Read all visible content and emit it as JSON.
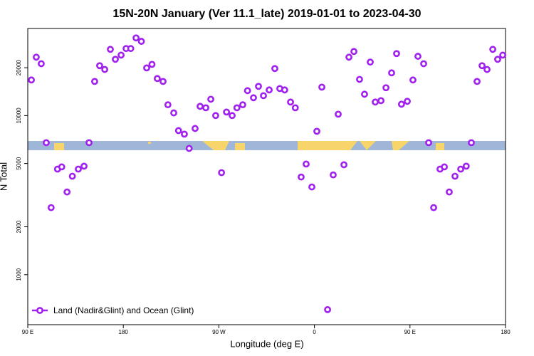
{
  "chart_data": {
    "type": "scatter",
    "title": "15N-20N January (Ver 11.1_late)   2019-01-01 to 2023-04-30",
    "x_label": "Longitude (deg E)",
    "y_label": "N Total",
    "xlim": [
      90,
      540
    ],
    "ylim": [
      485,
      35300
    ],
    "log_y": true,
    "xticks": [
      {
        "value": 90,
        "label": "90 E"
      },
      180,
      {
        "value": 270,
        "label": "90 W"
      },
      {
        "value": 360,
        "label": "0"
      },
      {
        "value": 450,
        "label": "90 E"
      },
      {
        "value": 540,
        "label": "180"
      }
    ],
    "yticks": [
      1000,
      2000,
      5000,
      10000,
      20000
    ],
    "legend": "lower left",
    "series": [
      {
        "name": "Land (Nadir&Glint) and Ocean (Glint)",
        "color": "#a020f0",
        "x": [
          93.4,
          98,
          102.7,
          107.4,
          112,
          118,
          122,
          127,
          132,
          137.6,
          143,
          147.7,
          153,
          157.7,
          162.5,
          167.8,
          172.5,
          177.9,
          182.6,
          187,
          192,
          197,
          202,
          207,
          212,
          217.4,
          222,
          227.5,
          232,
          237.5,
          242,
          247.6,
          252.3,
          257.7,
          262.4,
          267,
          272.5,
          277.2,
          282.5,
          287,
          292.5,
          297,
          302.6,
          307.3,
          312,
          317.4,
          322.7,
          327.4,
          332,
          337.5,
          342,
          347.5,
          352.2,
          357.6,
          362.3,
          367,
          372.4,
          377.7,
          382.4,
          387.8,
          392.5,
          397.2,
          402.5,
          407.2,
          412.6,
          417.3,
          422.7,
          427.4,
          432.7,
          437.4,
          442,
          447.5,
          452.8,
          457.5,
          462.9,
          467.6,
          472.3,
          478.3,
          482.4,
          487,
          492.4,
          497.8,
          503,
          507.8,
          513.2,
          517.9,
          522.6,
          528,
          532.6,
          537.4
        ],
        "values": [
          16750,
          23300,
          21200,
          6760,
          2640,
          4610,
          4760,
          3310,
          4160,
          4610,
          4810,
          6760,
          16400,
          20600,
          19500,
          26100,
          22600,
          24000,
          26400,
          26400,
          30800,
          29300,
          19950,
          21000,
          17100,
          16400,
          11700,
          10400,
          8050,
          7650,
          6220,
          8300,
          11440,
          11200,
          12680,
          10010,
          4380,
          10530,
          10010,
          11200,
          11700,
          14350,
          12950,
          15280,
          13350,
          14500,
          19770,
          14800,
          14500,
          12170,
          11200,
          4110,
          4960,
          3560,
          7970,
          15100,
          603,
          4240,
          10210,
          4910,
          23300,
          25300,
          16900,
          13630,
          21700,
          12170,
          12420,
          14970,
          18570,
          24550,
          11800,
          12300,
          16750,
          23600,
          21200,
          6760,
          2640,
          4610,
          4760,
          3310,
          4160,
          4610,
          4810,
          6760,
          16400,
          20600,
          19500,
          26100,
          22600,
          24000
        ]
      }
    ]
  }
}
